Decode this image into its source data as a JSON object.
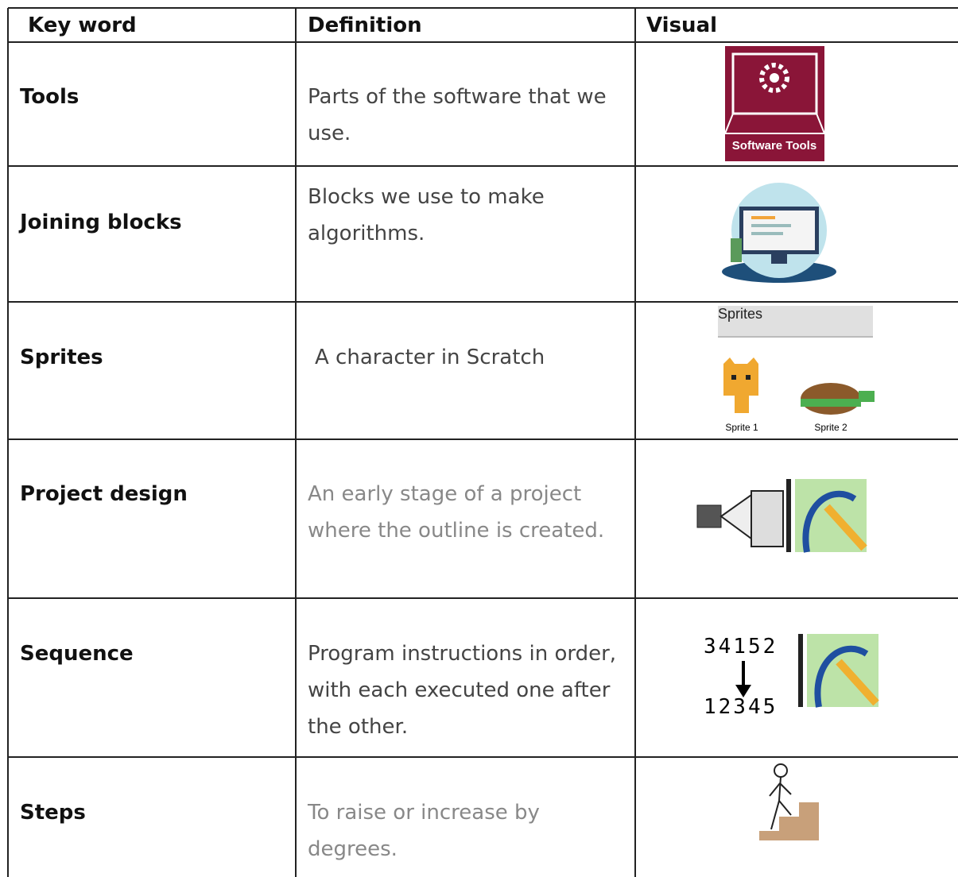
{
  "table": {
    "header": [
      "Key word",
      "Definition",
      "Visual"
    ],
    "rows": [
      [
        "Tools",
        "Parts of the software that we use."
      ],
      [
        "Joining blocks",
        "Blocks we use to make algorithms."
      ],
      [
        "Sprites",
        "A character in Scratch"
      ],
      [
        "Project design",
        "An early stage of a project where the outline is created."
      ],
      [
        "Sequence",
        "Program instructions in order, with each executed one after the other."
      ],
      [
        "Steps",
        "To raise or increase by degrees."
      ]
    ]
  },
  "visuals": {
    "tools": "Software Tools",
    "sprites": {
      "title": "Sprites",
      "labels": [
        "Sprite 1",
        "Sprite 2"
      ]
    },
    "sequence": {
      "before": "34152",
      "after": "12345"
    }
  }
}
